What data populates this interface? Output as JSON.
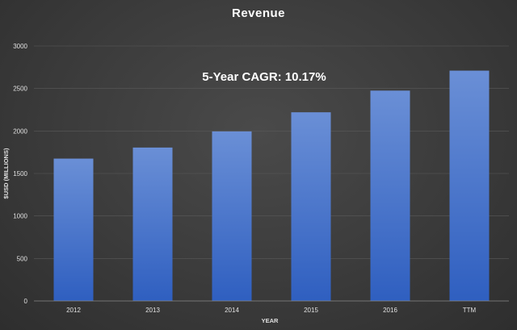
{
  "chart_data": {
    "type": "bar",
    "title": "Revenue",
    "xlabel": "YEAR",
    "ylabel": "$USD (MILLIONS)",
    "categories": [
      "2012",
      "2013",
      "2014",
      "2015",
      "2016",
      "TTM"
    ],
    "values": [
      1675,
      1805,
      1995,
      2220,
      2475,
      2710
    ],
    "ylim": [
      0,
      3000
    ],
    "yticks": [
      0,
      500,
      1000,
      1500,
      2000,
      2500,
      3000
    ],
    "annotation": "5-Year CAGR: 10.17%",
    "grid": true,
    "legend": "none",
    "colors": {
      "bar_top": "#6a8fd6",
      "bar_bottom": "#2f5fc0"
    }
  }
}
